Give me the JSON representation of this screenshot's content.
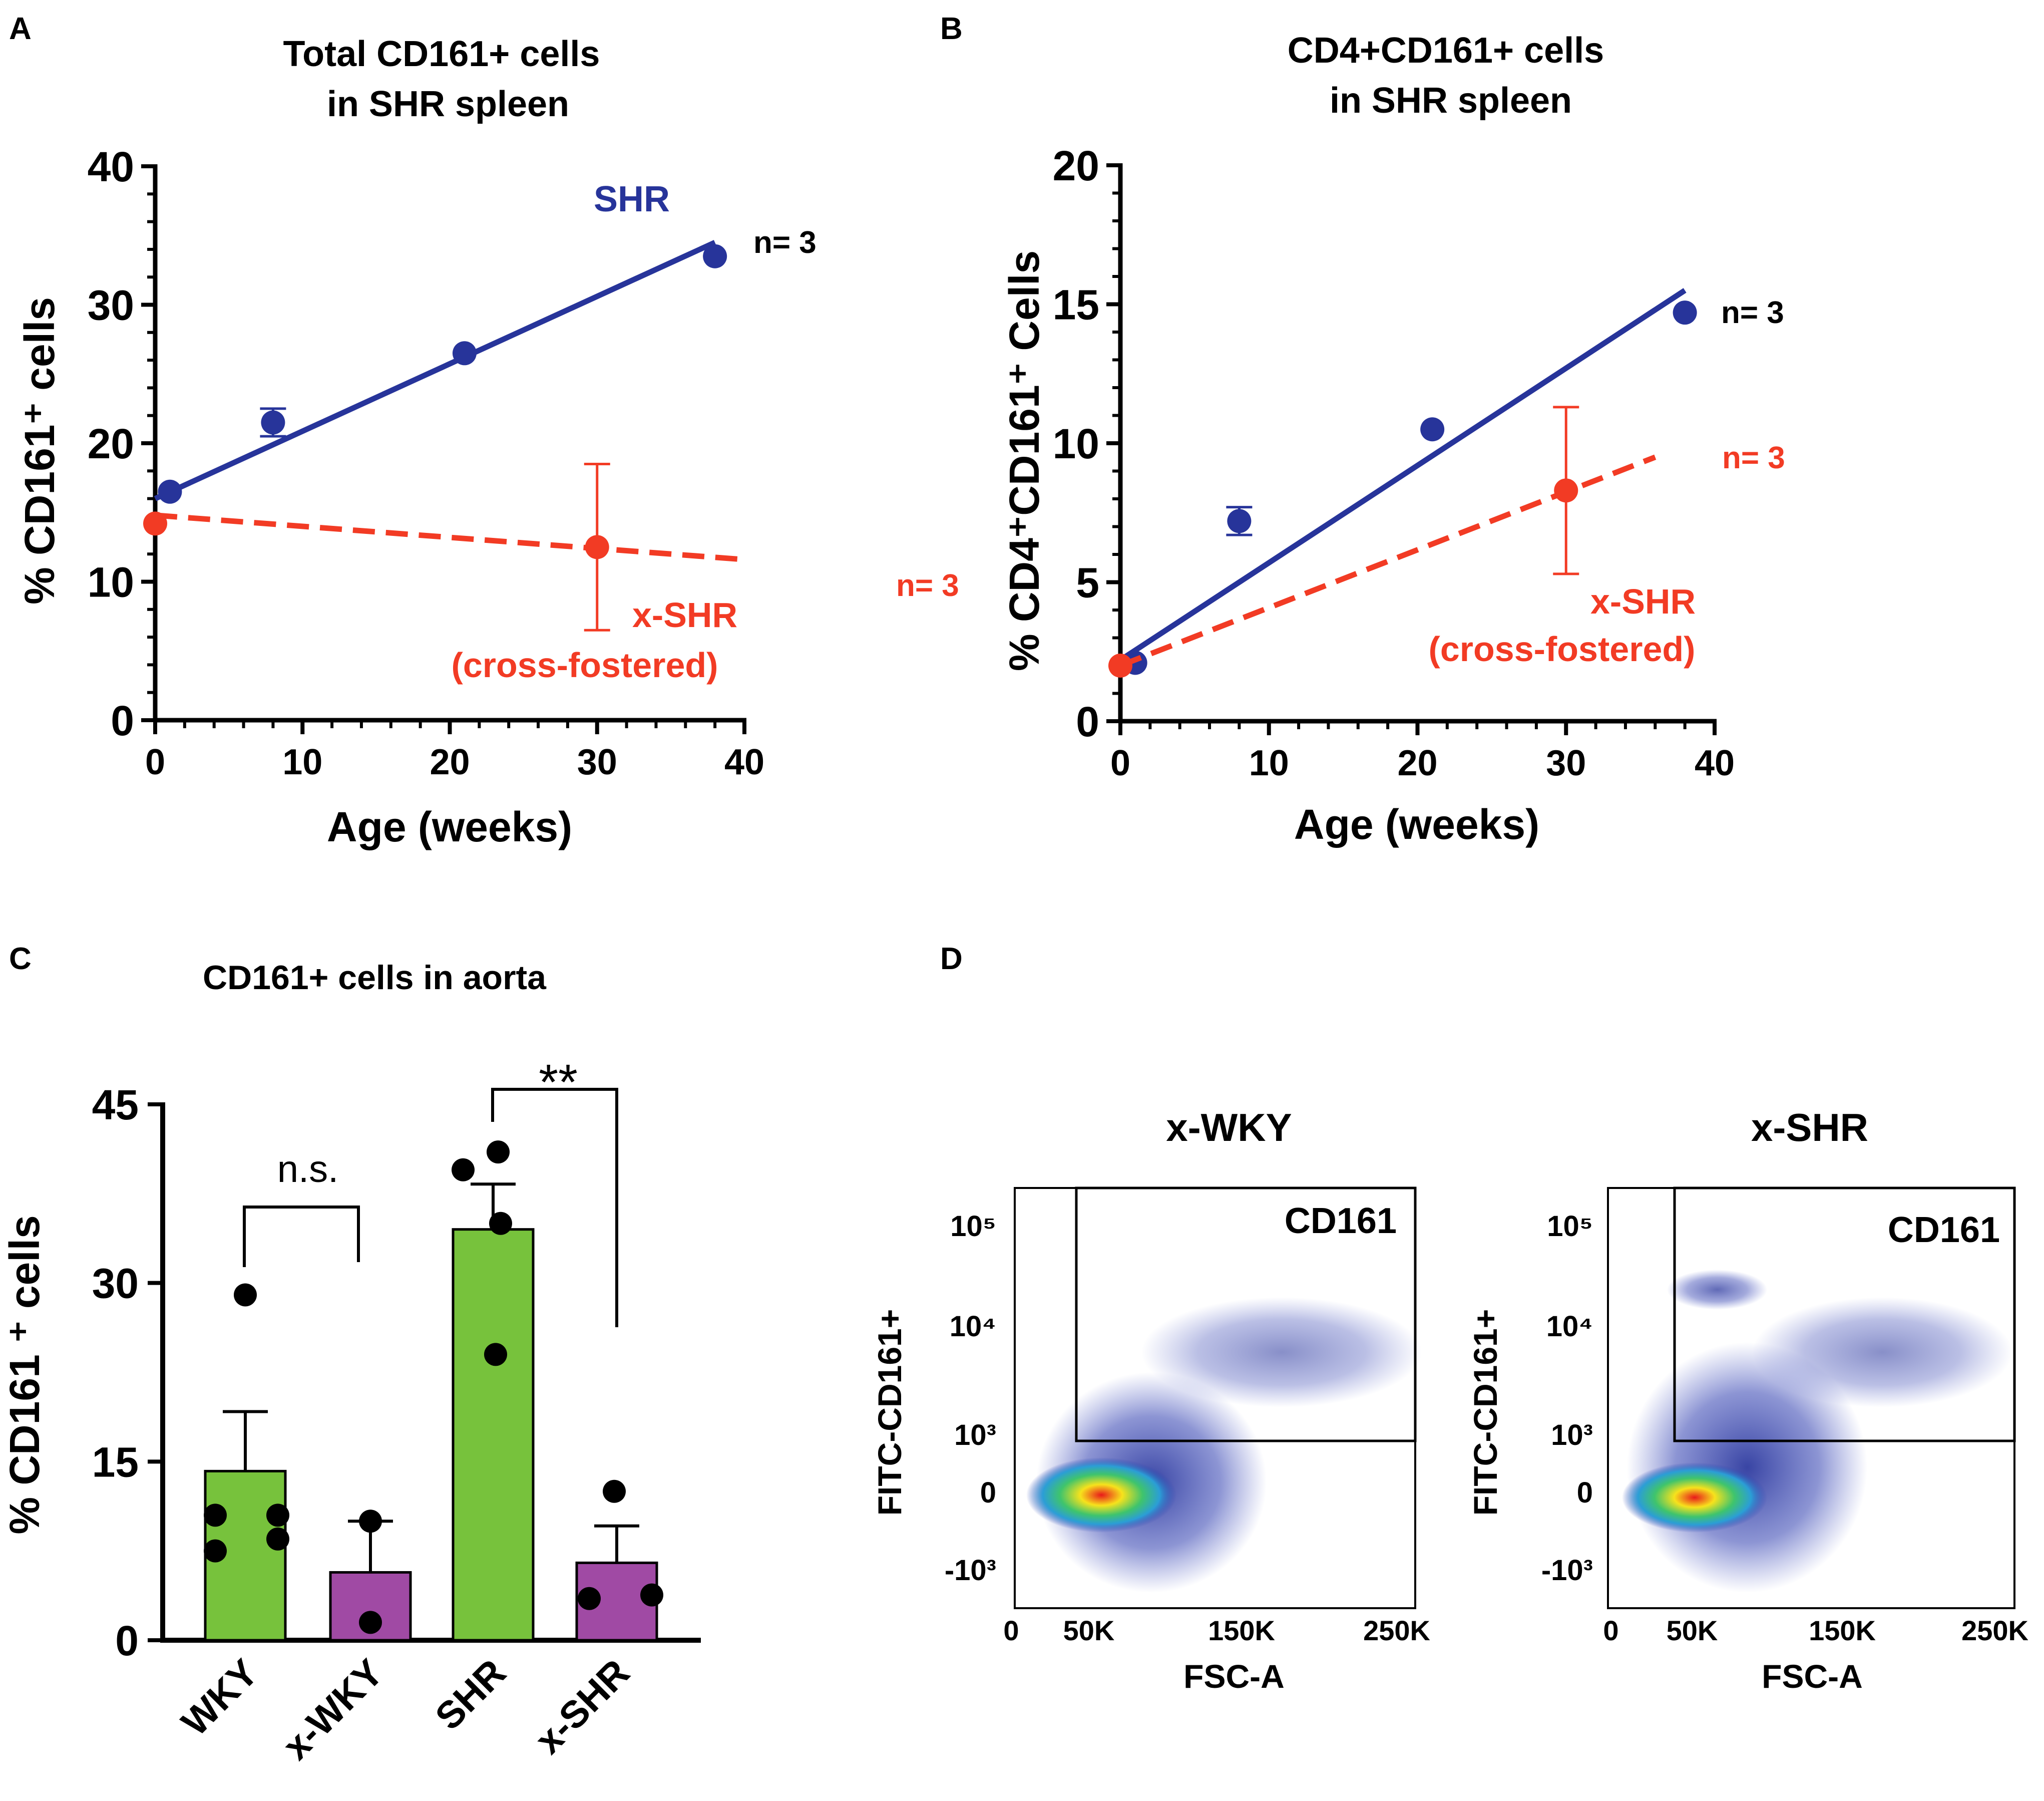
{
  "colors": {
    "shr": "#27349a",
    "xshr": "#f23b24",
    "green": "#77c23c",
    "purple": "#a04aa4",
    "axis": "#000000"
  },
  "panelA": {
    "letter": "A",
    "title_line1": "Total CD161+ cells",
    "title_line2": "in SHR spleen",
    "ylabel": "% CD161⁺ cells",
    "xlabel": "Age (weeks)",
    "xticks": [
      "0",
      "10",
      "20",
      "30",
      "40"
    ],
    "yticks": [
      "0",
      "10",
      "20",
      "30",
      "40"
    ],
    "shr_label": "SHR",
    "n_shr": "n= 3",
    "xshr_label1": "x-SHR",
    "xshr_label2": "(cross-fostered)"
  },
  "panelB": {
    "letter": "B",
    "title_line1": "CD4+CD161+ cells",
    "title_line2": "in SHR spleen",
    "ylabel": "% CD4⁺CD161⁺ Cells",
    "xlabel": "Age (weeks)",
    "xticks": [
      "0",
      "10",
      "20",
      "30",
      "40"
    ],
    "yticks": [
      "0",
      "5",
      "10",
      "15",
      "20"
    ],
    "n_shr": "n= 3",
    "n_xshr": "n= 3",
    "n_left": "n= 3",
    "xshr_label1": "x-SHR",
    "xshr_label2": "(cross-fostered)"
  },
  "panelC": {
    "letter": "C",
    "title": "CD161+ cells in aorta",
    "ylabel": "% CD161 ⁺ cells",
    "yticks": [
      "0",
      "15",
      "30",
      "45"
    ],
    "sig_ns": "n.s.",
    "sig_star": "**"
  },
  "panelD": {
    "letter": "D",
    "left_title": "x-WKY",
    "right_title": "x-SHR",
    "gate_label": "CD161",
    "ylabel": "FITC-CD161+",
    "xlabel": "FSC-A",
    "yticks": [
      "10⁵",
      "10⁴",
      "10³",
      "0",
      "-10³"
    ],
    "xticks": [
      "0",
      "50K",
      "150K",
      "250K"
    ]
  },
  "chart_data": [
    {
      "type": "scatter",
      "panel": "A",
      "title": "Total CD161+ cells in SHR spleen",
      "xlabel": "Age (weeks)",
      "ylabel": "% CD161+ cells",
      "xlim": [
        0,
        40
      ],
      "ylim": [
        0,
        40
      ],
      "series": [
        {
          "name": "SHR",
          "color": "#27349a",
          "x": [
            1,
            8,
            21,
            38
          ],
          "y": [
            16.5,
            21.5,
            26.5,
            33.5
          ],
          "err": [
            0,
            1.0,
            0,
            0
          ],
          "fit": [
            [
              0,
              16
            ],
            [
              38,
              34.5
            ]
          ]
        },
        {
          "name": "x-SHR (cross-fostered)",
          "color": "#f23b24",
          "x": [
            0,
            30
          ],
          "y": [
            14.2,
            12.5
          ],
          "err": [
            0,
            6
          ],
          "fit": [
            [
              0,
              14.8
            ],
            [
              40,
              11.6
            ]
          ]
        }
      ]
    },
    {
      "type": "scatter",
      "panel": "B",
      "title": "CD4+CD161+ cells in SHR spleen",
      "xlabel": "Age (weeks)",
      "ylabel": "% CD4+CD161+ Cells",
      "xlim": [
        0,
        40
      ],
      "ylim": [
        0,
        20
      ],
      "series": [
        {
          "name": "SHR",
          "color": "#27349a",
          "x": [
            1,
            8,
            21,
            38
          ],
          "y": [
            2.1,
            7.2,
            10.5,
            14.7
          ],
          "err": [
            0,
            0.5,
            0,
            0
          ],
          "fit": [
            [
              0,
              2.2
            ],
            [
              38,
              15.5
            ]
          ]
        },
        {
          "name": "x-SHR (cross-fostered)",
          "color": "#f23b24",
          "x": [
            0,
            30
          ],
          "y": [
            2.0,
            8.3
          ],
          "err": [
            0,
            3.0
          ],
          "fit": [
            [
              0,
              2.0
            ],
            [
              36,
              9.5
            ]
          ]
        }
      ]
    },
    {
      "type": "bar",
      "panel": "C",
      "title": "CD161+ cells in aorta",
      "ylabel": "% CD161 + cells",
      "ylim": [
        0,
        45
      ],
      "categories": [
        "WKY",
        "x-WKY",
        "SHR",
        "x-SHR"
      ],
      "values": [
        14.2,
        5.7,
        34.5,
        6.5
      ],
      "sem": [
        5.0,
        4.3,
        3.8,
        3.1
      ],
      "bar_colors": [
        "#77c23c",
        "#a04aa4",
        "#77c23c",
        "#a04aa4"
      ],
      "points": [
        [
          29,
          10.5,
          8.5,
          7.5,
          10.5
        ],
        [
          10,
          1.5
        ],
        [
          39.5,
          41,
          35,
          24
        ],
        [
          12.5,
          3.5,
          3.8
        ]
      ],
      "comparisons": [
        {
          "pair": [
            "WKY",
            "x-WKY"
          ],
          "label": "n.s."
        },
        {
          "pair": [
            "SHR",
            "x-SHR"
          ],
          "label": "**"
        }
      ]
    }
  ]
}
